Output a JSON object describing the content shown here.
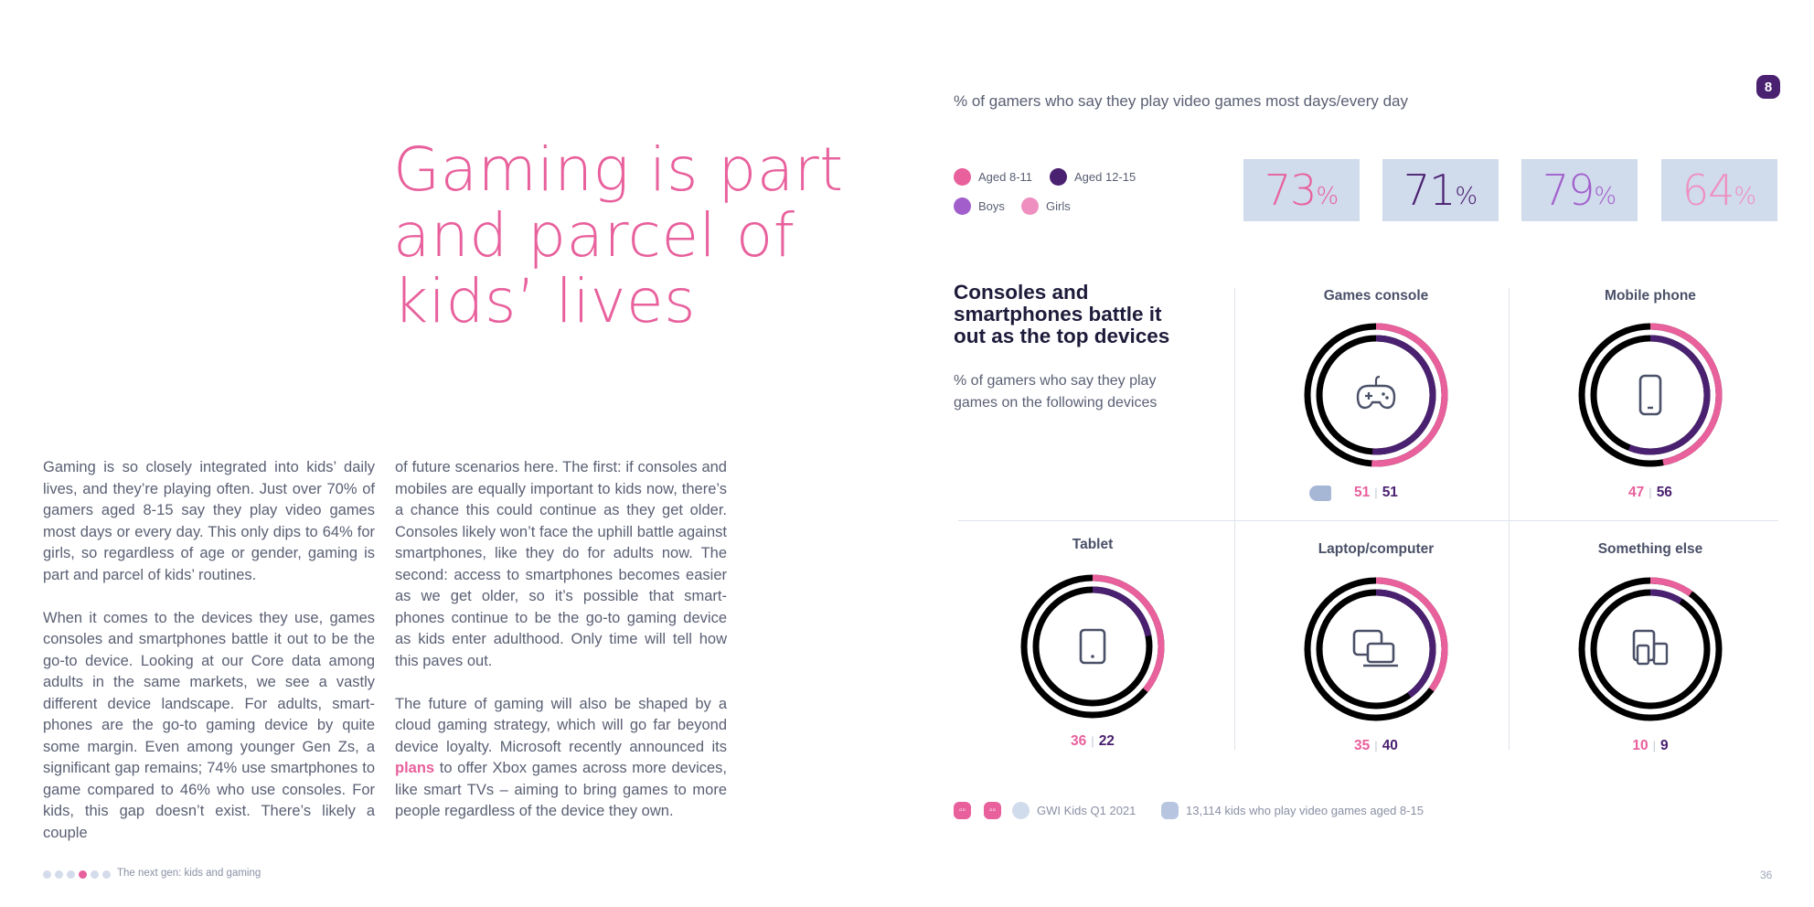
{
  "headline": "Gaming is part and parcel of kids’ lives",
  "body": {
    "col1_p1": "Gaming is so closely integrated into kids’ daily lives, and they’re playing often. Just over 70% of gamers aged 8-15 say they play video games most days or every day. This only dips to 64% for girls, so regardless of age or gender, gaming is part and parcel of kids’ routines.",
    "col1_p2": "When it comes to the devices they use, games consoles and smartphones battle it out to be the go-to device. Looking at our Core data among adults in the same markets, we see a vastly different device landscape. For adults, smart-phones are the go-to gaming device by quite some margin. Even among younger Gen Zs, a significant gap remains; 74% use smartphones to game compared to 46% who use consoles. For kids, this gap doesn’t exist. There’s likely a couple",
    "col2_p1": "of future scenarios here. The first: if consoles and mobiles are equally important to kids now, there’s a chance this could continue as they get older. Consoles likely won’t face the uphill battle against smartphones, like they do for adults now. The second: access to smartphones becomes easier as we get older, so it’s possible that smart-phones continue to be the go-to gaming device as kids enter adulthood. Only time will tell how this paves out.",
    "col2_p2_before": "The future of gaming will also be shaped by a cloud gaming strategy, which will go far beyond device loyalty. Microsoft recently announced its ",
    "col2_p2_link": "plans",
    "col2_p2_after": " to offer Xbox games across more devices, like smart TVs – aiming to bring games to more people regardless of the device they own."
  },
  "page_badge": "8",
  "subtitle": "% of gamers who say they play video games most days/every day",
  "legend": [
    {
      "label": "Aged 8-11",
      "color": "#e8609c"
    },
    {
      "label": "Aged 12-15",
      "color": "#4a2070"
    },
    {
      "label": "Boys",
      "color": "#a25fcc"
    },
    {
      "label": "Girls",
      "color": "#ef8fbf"
    }
  ],
  "stats": [
    {
      "value": "73",
      "pct": "%",
      "color": "#e8609c"
    },
    {
      "value": "71",
      "pct": "%",
      "color": "#4a2070"
    },
    {
      "value": "79",
      "pct": "%",
      "color": "#a25fcc"
    },
    {
      "value": "64",
      "pct": "%",
      "color": "#ef8fbf"
    }
  ],
  "section": {
    "title": "Consoles and smartphones battle it out as the top devices",
    "subtitle": "% of gamers who say they play games on the following devices"
  },
  "chart_data": {
    "type": "donut",
    "title": "Consoles and smartphones battle it out as the top devices",
    "series": [
      {
        "name": "Aged 8-11",
        "color": "#e8609c"
      },
      {
        "name": "Aged 12-15",
        "color": "#4a2070"
      }
    ],
    "categories": [
      "Games console",
      "Mobile phone",
      "Tablet",
      "Laptop/computer",
      "Something else"
    ],
    "values_aged_8_11": [
      51,
      47,
      36,
      35,
      10
    ],
    "values_aged_12_15": [
      51,
      56,
      22,
      40,
      9
    ],
    "devices": [
      {
        "name": "Games console",
        "a": 51,
        "b": 51,
        "icon": "gamepad-icon"
      },
      {
        "name": "Mobile phone",
        "a": 47,
        "b": 56,
        "icon": "phone-icon"
      },
      {
        "name": "Tablet",
        "a": 36,
        "b": 22,
        "icon": "tablet-icon"
      },
      {
        "name": "Laptop/computer",
        "a": 35,
        "b": 40,
        "icon": "laptop-icon"
      },
      {
        "name": "Something else",
        "a": 10,
        "b": 9,
        "icon": "devices-icon"
      }
    ]
  },
  "footer": {
    "source": "GWI Kids Q1 2021",
    "base": "13,114 kids who play video games aged 8-15",
    "report_title": "The next gen: kids and gaming",
    "page_number": "36"
  },
  "colors": {
    "pink": "#e8609c",
    "purple": "#4a2070",
    "track": "#000000",
    "box": "#d0dbec"
  }
}
